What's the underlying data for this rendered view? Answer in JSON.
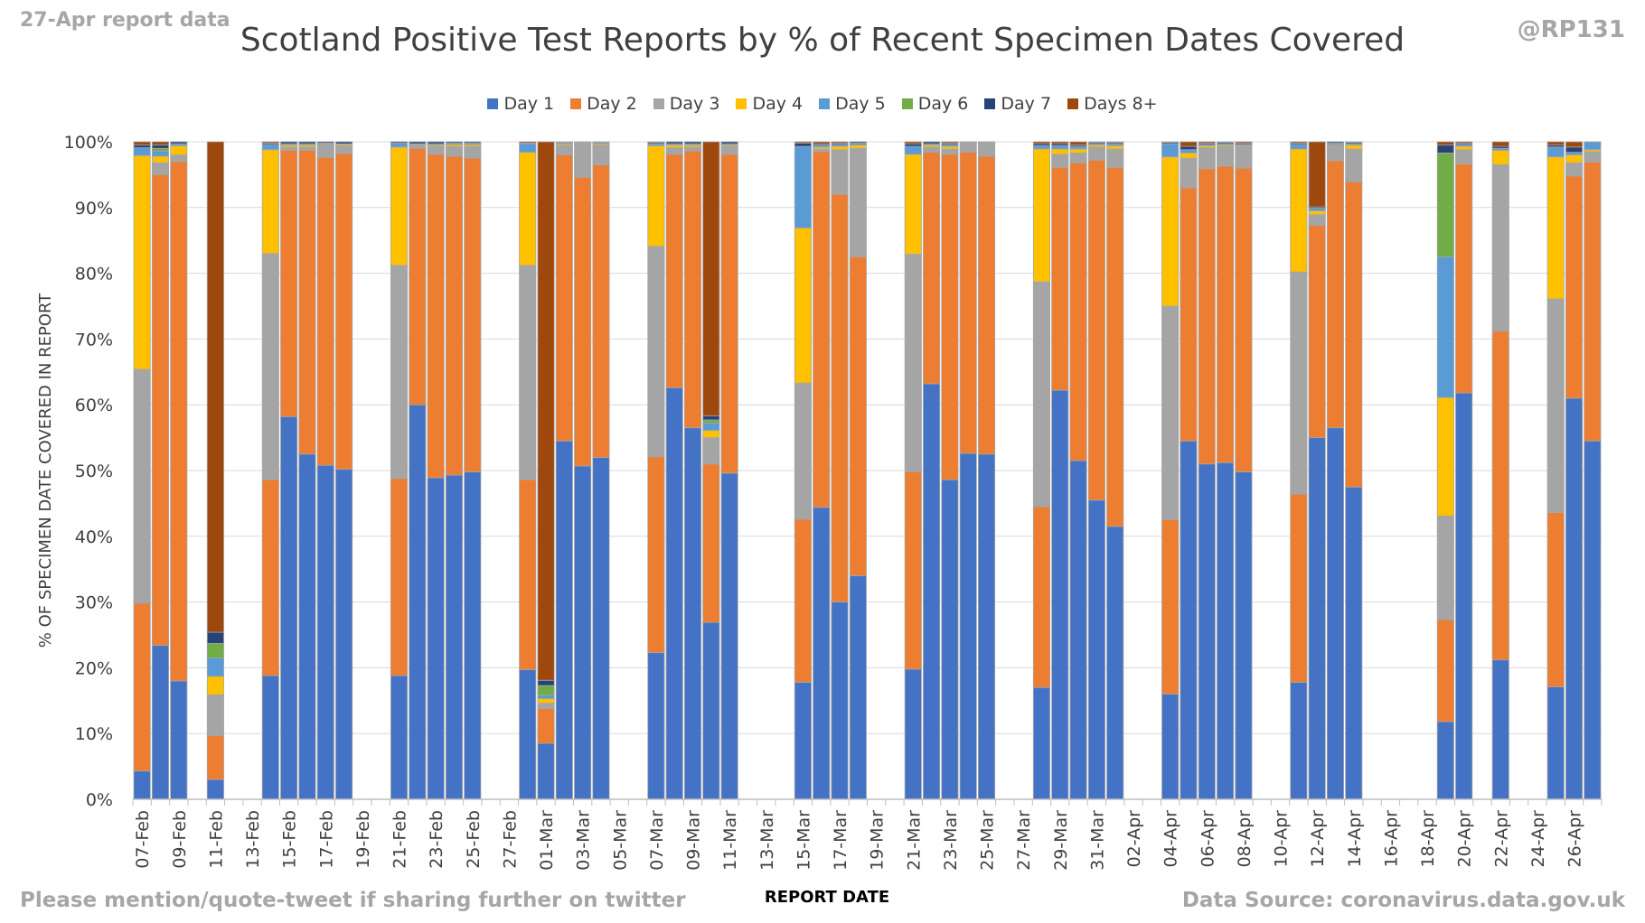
{
  "header": {
    "report_label": "27-Apr report data",
    "handle": "@RP131"
  },
  "footer": {
    "left": "Please mention/quote-tweet if sharing further on twitter",
    "right": "Data Source: coronavirus.data.gov.uk"
  },
  "colors": {
    "Day 1": "#4472c4",
    "Day 2": "#ed7d31",
    "Day 3": "#a5a5a5",
    "Day 4": "#ffc000",
    "Day 5": "#5b9bd5",
    "Day 6": "#70ad47",
    "Day 7": "#264478",
    "Days 8+": "#9e480e"
  },
  "chart_data": {
    "type": "bar",
    "stacked": true,
    "title": "Scotland Positive Test Reports by % of Recent Specimen Dates Covered",
    "xlabel": "REPORT DATE",
    "ylabel": "% OF SPECIMEN DATE COVERED IN REPORT",
    "ylim": [
      0,
      100
    ],
    "yticks": [
      "0%",
      "10%",
      "20%",
      "30%",
      "40%",
      "50%",
      "60%",
      "70%",
      "80%",
      "90%",
      "100%"
    ],
    "legend_position": "top",
    "grid": true,
    "series_names": [
      "Day 1",
      "Day 2",
      "Day 3",
      "Day 4",
      "Day 5",
      "Day 6",
      "Day 7",
      "Days 8+"
    ],
    "categories": [
      "07-Feb",
      "08-Feb",
      "09-Feb",
      "10-Feb",
      "11-Feb",
      "12-Feb",
      "13-Feb",
      "14-Feb",
      "15-Feb",
      "16-Feb",
      "17-Feb",
      "18-Feb",
      "19-Feb",
      "20-Feb",
      "21-Feb",
      "22-Feb",
      "23-Feb",
      "24-Feb",
      "25-Feb",
      "26-Feb",
      "27-Feb",
      "28-Feb",
      "01-Mar",
      "02-Mar",
      "03-Mar",
      "04-Mar",
      "05-Mar",
      "06-Mar",
      "07-Mar",
      "08-Mar",
      "09-Mar",
      "10-Mar",
      "11-Mar",
      "12-Mar",
      "13-Mar",
      "14-Mar",
      "15-Mar",
      "16-Mar",
      "17-Mar",
      "18-Mar",
      "19-Mar",
      "20-Mar",
      "21-Mar",
      "22-Mar",
      "23-Mar",
      "24-Mar",
      "25-Mar",
      "26-Mar",
      "27-Mar",
      "28-Mar",
      "29-Mar",
      "30-Mar",
      "31-Mar",
      "01-Apr",
      "02-Apr",
      "03-Apr",
      "04-Apr",
      "05-Apr",
      "06-Apr",
      "07-Apr",
      "08-Apr",
      "09-Apr",
      "10-Apr",
      "11-Apr",
      "12-Apr",
      "13-Apr",
      "14-Apr",
      "15-Apr",
      "16-Apr",
      "17-Apr",
      "18-Apr",
      "19-Apr",
      "20-Apr",
      "21-Apr",
      "22-Apr",
      "23-Apr",
      "24-Apr",
      "25-Apr",
      "26-Apr",
      "27-Apr"
    ],
    "tick_labels": [
      "07-Feb",
      "09-Feb",
      "11-Feb",
      "13-Feb",
      "15-Feb",
      "17-Feb",
      "19-Feb",
      "21-Feb",
      "23-Feb",
      "25-Feb",
      "27-Feb",
      "01-Mar",
      "03-Mar",
      "05-Mar",
      "07-Mar",
      "09-Mar",
      "11-Mar",
      "13-Mar",
      "15-Mar",
      "17-Mar",
      "19-Mar",
      "21-Mar",
      "23-Mar",
      "25-Mar",
      "27-Mar",
      "29-Mar",
      "31-Mar",
      "02-Apr",
      "04-Apr",
      "06-Apr",
      "08-Apr",
      "10-Apr",
      "12-Apr",
      "14-Apr",
      "16-Apr",
      "18-Apr",
      "20-Apr",
      "22-Apr",
      "24-Apr",
      "26-Apr"
    ],
    "values": [
      [
        4.3,
        25.5,
        35.6,
        32.5,
        1.2,
        0,
        0.4,
        0.5
      ],
      [
        23.4,
        71.6,
        1.8,
        1.0,
        0.8,
        0.4,
        0.5,
        0.5
      ],
      [
        18.0,
        79.0,
        1.0,
        1.4,
        0.3,
        0,
        0.3,
        0
      ],
      null,
      [
        3.0,
        6.7,
        6.2,
        2.8,
        2.8,
        2.2,
        1.7,
        74.6
      ],
      null,
      null,
      [
        18.8,
        29.8,
        34.4,
        15.8,
        0.8,
        0,
        0.2,
        0.2
      ],
      [
        58.2,
        40.5,
        0.5,
        0.3,
        0.2,
        0,
        0.3,
        0
      ],
      [
        52.5,
        46.2,
        0.5,
        0.3,
        0.2,
        0,
        0.3,
        0
      ],
      [
        50.8,
        46.8,
        2.0,
        0.1,
        0.1,
        0,
        0.2,
        0
      ],
      [
        50.2,
        48.0,
        1.2,
        0.2,
        0.1,
        0,
        0.3,
        0
      ],
      null,
      null,
      [
        18.8,
        30.0,
        32.4,
        18.0,
        0.6,
        0,
        0.2,
        0
      ],
      [
        60.0,
        39.0,
        0.5,
        0.1,
        0.1,
        0,
        0.3,
        0
      ],
      [
        48.9,
        49.2,
        1.2,
        0.2,
        0.2,
        0,
        0.3,
        0
      ],
      [
        49.3,
        48.5,
        1.5,
        0.3,
        0.2,
        0,
        0.2,
        0
      ],
      [
        49.8,
        47.7,
        1.8,
        0.3,
        0.2,
        0,
        0.2,
        0
      ],
      null,
      null,
      [
        19.7,
        28.9,
        32.6,
        17.2,
        1.3,
        0,
        0.1,
        0.2
      ],
      [
        8.5,
        5.3,
        0.8,
        0.7,
        0.5,
        1.5,
        0.8,
        81.9
      ],
      [
        54.5,
        43.5,
        1.5,
        0.2,
        0.2,
        0,
        0.1,
        0
      ],
      [
        50.7,
        43.9,
        5.1,
        0.1,
        0.1,
        0,
        0.1,
        0
      ],
      [
        52.0,
        44.5,
        3.0,
        0.2,
        0.2,
        0,
        0.1,
        0
      ],
      null,
      null,
      [
        22.3,
        29.8,
        32.0,
        15.3,
        0.3,
        0,
        0.2,
        0.1
      ],
      [
        62.6,
        35.5,
        1.0,
        0.4,
        0.2,
        0,
        0.3,
        0
      ],
      [
        56.5,
        42.1,
        0.6,
        0.3,
        0.2,
        0,
        0.3,
        0
      ],
      [
        26.9,
        24.1,
        4.0,
        1.1,
        1.1,
        0.5,
        0.6,
        41.7
      ],
      [
        49.6,
        48.5,
        1.2,
        0.2,
        0.2,
        0,
        0.3,
        0
      ],
      null,
      null,
      null,
      [
        17.8,
        24.8,
        20.7,
        23.6,
        12.4,
        0,
        0.5,
        0.2
      ],
      [
        44.4,
        54.1,
        0.4,
        0.3,
        0.3,
        0,
        0.2,
        0.3
      ],
      [
        30.0,
        62.0,
        6.8,
        0.5,
        0.3,
        0,
        0.2,
        0.2
      ],
      [
        34.0,
        48.5,
        16.5,
        0.5,
        0.3,
        0,
        0.2,
        0
      ],
      null,
      null,
      [
        19.8,
        30.0,
        33.1,
        15.2,
        1.2,
        0,
        0.4,
        0.3
      ],
      [
        63.2,
        35.2,
        0.8,
        0.3,
        0.2,
        0,
        0.3,
        0
      ],
      [
        48.6,
        49.5,
        0.8,
        0.4,
        0.3,
        0,
        0.2,
        0.2
      ],
      [
        52.6,
        45.8,
        1.2,
        0.1,
        0.1,
        0,
        0.1,
        0.1
      ],
      [
        52.5,
        45.3,
        2.0,
        0.1,
        0.1,
        0,
        0,
        0
      ],
      null,
      null,
      [
        17.0,
        27.5,
        34.2,
        20.2,
        0.5,
        0,
        0.3,
        0.3
      ],
      [
        62.2,
        33.9,
        2.0,
        0.8,
        0.5,
        0,
        0.3,
        0.3
      ],
      [
        51.5,
        45.3,
        1.5,
        0.6,
        0.4,
        0,
        0.2,
        0.5
      ],
      [
        45.5,
        51.7,
        2.0,
        0.3,
        0.2,
        0,
        0.2,
        0.1
      ],
      [
        41.5,
        54.6,
        2.8,
        0.5,
        0.3,
        0,
        0.2,
        0.1
      ],
      null,
      null,
      [
        16.0,
        26.5,
        32.5,
        22.7,
        2.0,
        0,
        0.2,
        0.1
      ],
      [
        54.5,
        38.5,
        4.5,
        0.8,
        0.5,
        0,
        0.5,
        0.7
      ],
      [
        51.0,
        44.9,
        3.2,
        0.3,
        0.2,
        0,
        0.2,
        0.2
      ],
      [
        51.2,
        45.1,
        3.0,
        0.2,
        0.2,
        0,
        0.2,
        0.1
      ],
      [
        49.8,
        46.2,
        3.4,
        0.1,
        0.1,
        0,
        0.2,
        0.2
      ],
      null,
      null,
      [
        17.8,
        28.6,
        33.8,
        18.7,
        0.7,
        0,
        0.2,
        0.2
      ],
      [
        55.0,
        32.3,
        1.6,
        0.6,
        0.4,
        0,
        0.2,
        9.9
      ],
      [
        56.5,
        40.6,
        2.4,
        0.1,
        0.2,
        0,
        0.2,
        0
      ],
      [
        47.5,
        46.4,
        5.0,
        0.6,
        0.2,
        0,
        0.2,
        0.1
      ],
      null,
      null,
      null,
      null,
      [
        11.8,
        15.5,
        15.8,
        18.0,
        21.4,
        15.8,
        1.2,
        0.5
      ],
      [
        61.8,
        34.8,
        2.2,
        0.5,
        0.3,
        0,
        0.2,
        0.2
      ],
      null,
      [
        21.2,
        50.0,
        25.3,
        2.2,
        0.3,
        0,
        0.3,
        0.7
      ],
      null,
      null,
      [
        17.1,
        26.5,
        32.5,
        21.6,
        1.5,
        0,
        0.3,
        0.5
      ],
      [
        61.0,
        33.8,
        2.0,
        1.2,
        0.4,
        0,
        0.8,
        0.8
      ],
      [
        54.5,
        42.4,
        1.6,
        0.3,
        1.2,
        0,
        0,
        0
      ]
    ]
  }
}
